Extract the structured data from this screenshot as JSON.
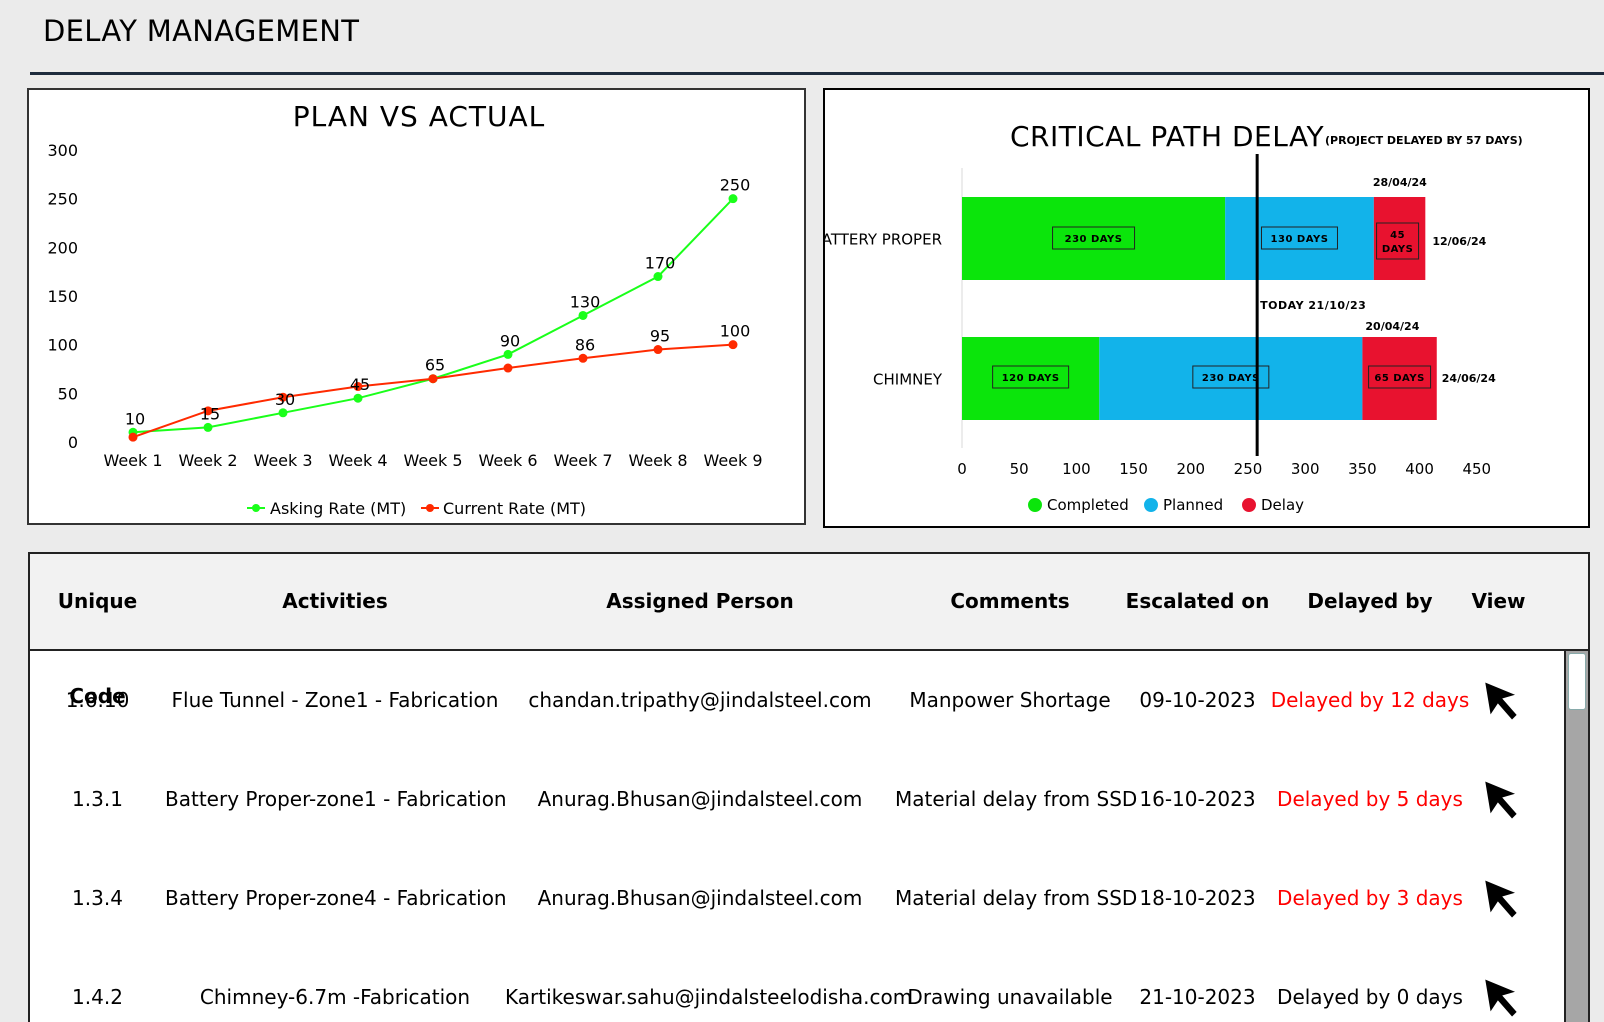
{
  "page": {
    "title": "DELAY MANAGEMENT"
  },
  "plan_chart": {
    "title": "PLAN VS ACTUAL",
    "y_ticks": [
      "0",
      "50",
      "100",
      "150",
      "200",
      "250",
      "300"
    ],
    "categories": [
      "Week 1",
      "Week 2",
      "Week 3",
      "Week 4",
      "Week 5",
      "Week 6",
      "Week 7",
      "Week 8",
      "Week 9"
    ],
    "legend": [
      "Asking Rate (MT)",
      "Current Rate (MT)"
    ]
  },
  "cp_chart": {
    "title": "CRITICAL PATH DELAY",
    "subtitle": "(PROJECT DELAYED BY 57 DAYS)",
    "x_ticks": [
      "0",
      "50",
      "100",
      "150",
      "200",
      "250",
      "300",
      "350",
      "400",
      "450"
    ],
    "today_label": "TODAY 21/10/23",
    "legend": [
      "Completed",
      "Planned",
      "Delay"
    ],
    "rows": [
      {
        "name": "BATTERY PROPER",
        "completed_label": "230 DAYS",
        "planned_label": "130 DAYS",
        "delay_label_1": "45",
        "delay_label_2": "DAYS",
        "date_top": "28/04/24",
        "date_end": "12/06/24"
      },
      {
        "name": "CHIMNEY",
        "completed_label": "120 DAYS",
        "planned_label": "230 DAYS",
        "delay_label_1": "65 DAYS",
        "date_top": "20/04/24",
        "date_end": "24/06/24"
      }
    ]
  },
  "chart_data": [
    {
      "type": "line",
      "title": "PLAN VS ACTUAL",
      "categories": [
        "Week 1",
        "Week 2",
        "Week 3",
        "Week 4",
        "Week 5",
        "Week 6",
        "Week 7",
        "Week 8",
        "Week 9"
      ],
      "ylim": [
        0,
        300
      ],
      "grid": false,
      "legend_position": "bottom",
      "series": [
        {
          "name": "Asking Rate (MT)",
          "color": "#1aff1a",
          "values": [
            10,
            15,
            30,
            45,
            65,
            90,
            130,
            170,
            250
          ]
        },
        {
          "name": "Current Rate (MT)",
          "color": "#ff2a00",
          "values": [
            5,
            32,
            46,
            57,
            65,
            76,
            86,
            95,
            100
          ]
        }
      ]
    },
    {
      "type": "bar",
      "orientation": "horizontal",
      "stacked": true,
      "title": "CRITICAL PATH DELAY",
      "subtitle": "(PROJECT DELAYED BY 57 DAYS)",
      "categories": [
        "BATTERY PROPER",
        "CHIMNEY"
      ],
      "xlim": [
        0,
        450
      ],
      "today_value": 258,
      "legend_position": "bottom",
      "series": [
        {
          "name": "Completed",
          "color": "#0be50b",
          "values": [
            230,
            120
          ]
        },
        {
          "name": "Planned",
          "color": "#12b3ea",
          "values": [
            130,
            230
          ]
        },
        {
          "name": "Delay",
          "color": "#e8122f",
          "values": [
            45,
            65
          ]
        }
      ]
    }
  ],
  "table": {
    "headers": [
      "Unique Code",
      "Activities",
      "Assigned Person",
      "Comments",
      "Escalated on",
      "Delayed by",
      "View"
    ],
    "rows": [
      {
        "code": "1.6.10",
        "activity": "Flue Tunnel - Zone1 - Fabrication",
        "person": "chandan.tripathy@jindalsteel.com",
        "comment": "Manpower Shortage",
        "escalated": "09-10-2023",
        "delayed": "Delayed by 12 days",
        "delayed_color": "#ff0000"
      },
      {
        "code": "1.3.1",
        "activity": "Battery Proper-zone1 - Fabrication",
        "person": "Anurag.Bhusan@jindalsteel.com",
        "comment": "Material delay from SSD",
        "escalated": "16-10-2023",
        "delayed": "Delayed by 5 days",
        "delayed_color": "#ff0000"
      },
      {
        "code": "1.3.4",
        "activity": "Battery Proper-zone4 - Fabrication",
        "person": "Anurag.Bhusan@jindalsteel.com",
        "comment": "Material delay from SSD",
        "escalated": "18-10-2023",
        "delayed": "Delayed by 3 days",
        "delayed_color": "#ff0000"
      },
      {
        "code": "1.4.2",
        "activity": "Chimney-6.7m -Fabrication",
        "person": "Kartikeswar.sahu@jindalsteelodisha.com",
        "comment": "Drawing unavailable",
        "escalated": "21-10-2023",
        "delayed": "Delayed by 0 days",
        "delayed_color": "#000000"
      }
    ]
  }
}
